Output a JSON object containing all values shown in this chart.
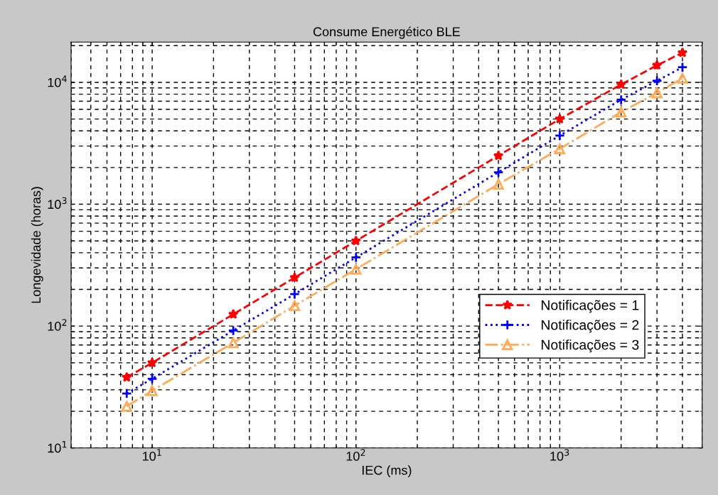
{
  "chart_data": {
    "type": "line",
    "title": "Consume Energético BLE",
    "xlabel": "IEC (ms)",
    "ylabel": "Longevidade (horas)",
    "x": [
      7.5,
      10,
      25,
      50,
      100,
      500,
      1000,
      2000,
      3000,
      4000
    ],
    "series": [
      {
        "name": "Notificações = 1",
        "color": "#ff0000",
        "marker": "star",
        "line_style": "dashed",
        "values": [
          38,
          50,
          125,
          250,
          500,
          2500,
          5000,
          9600,
          13800,
          17500
        ]
      },
      {
        "name": "Notificações = 2",
        "color": "#0000ff",
        "marker": "cross",
        "line_style": "dotted",
        "values": [
          28,
          37,
          92,
          183,
          366,
          1830,
          3660,
          7200,
          10300,
          13300
        ]
      },
      {
        "name": "Notificações = 3",
        "color": "#ffaa55",
        "marker": "triangle",
        "line_style": "dashdot",
        "values": [
          22,
          29.5,
          73,
          147,
          293,
          1460,
          2850,
          5700,
          8200,
          10800
        ]
      }
    ],
    "log": "xy",
    "xlim": [
      4,
      5000
    ],
    "ylim": [
      10,
      21400
    ],
    "xticks": [
      {
        "value": 10,
        "label": "10$^{1}$"
      },
      {
        "value": 100,
        "label": "10$^{2}$"
      },
      {
        "value": 1000,
        "label": "10$^{3}$"
      }
    ],
    "yticks": [
      {
        "value": 10,
        "label": "10$^{1}$"
      },
      {
        "value": 100,
        "label": "10$^{2}$"
      },
      {
        "value": 1000,
        "label": "10$^{3}$"
      },
      {
        "value": 10000,
        "label": "10$^{4}$"
      }
    ],
    "grid": true,
    "legend": "right"
  }
}
